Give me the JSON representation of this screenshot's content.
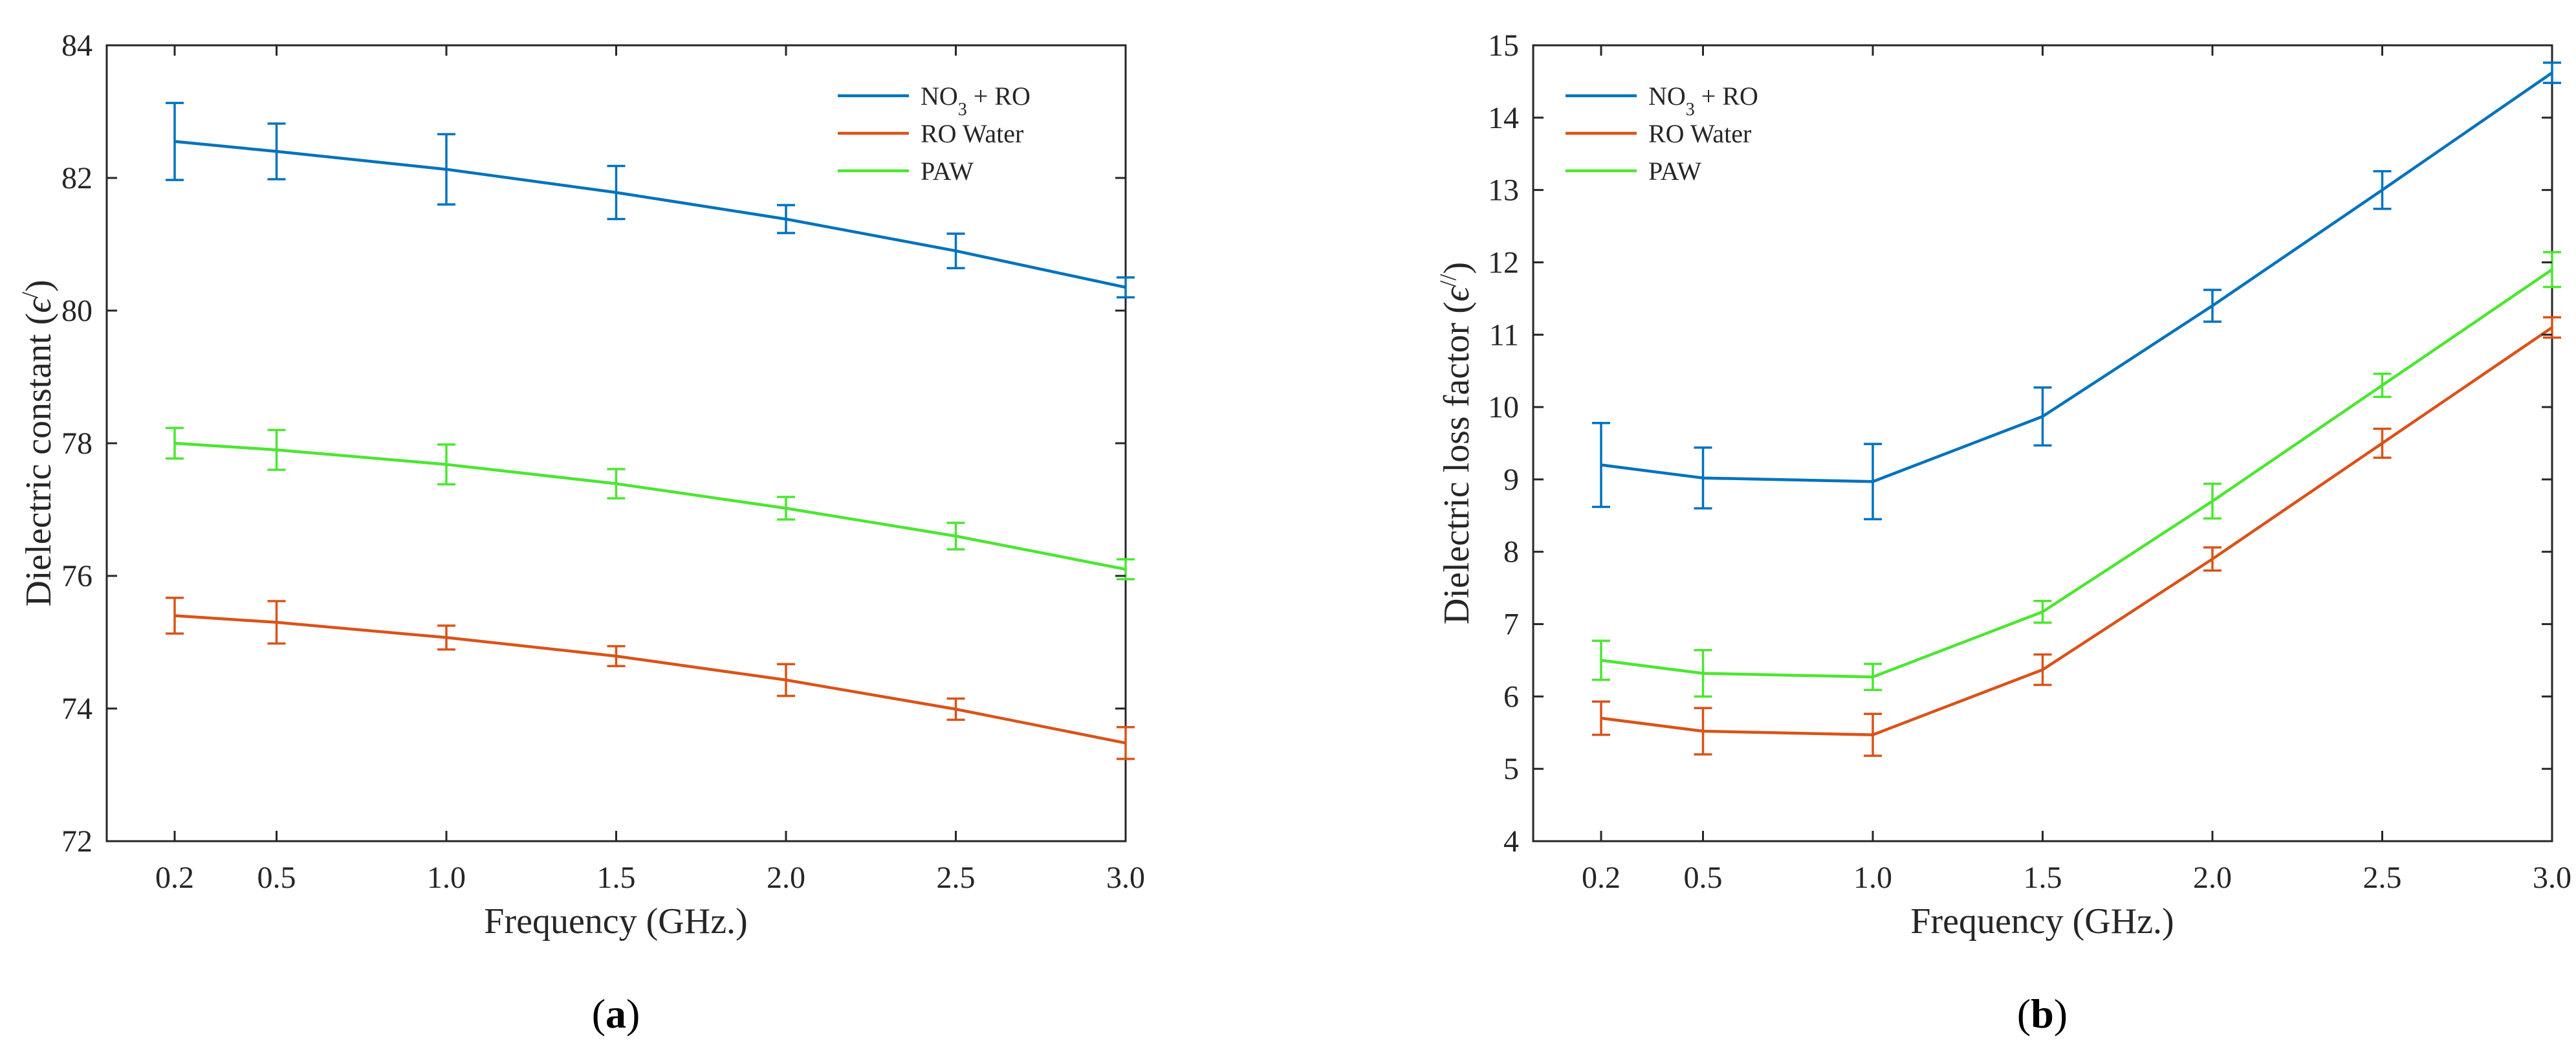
{
  "chart_data": [
    {
      "type": "line",
      "caption": {
        "open": "(",
        "letter": "a",
        "close": ")"
      },
      "xlabel": "Frequency (GHz.)",
      "ylabel": {
        "main": "Dielectric constant (",
        "symbol": "ϵ",
        "sup": "/",
        "close": ")"
      },
      "x": [
        0.2,
        0.5,
        1.0,
        1.5,
        2.0,
        2.5,
        3.0
      ],
      "x_ticklabels": [
        "0.2",
        "0.5",
        "1.0",
        "1.5",
        "2.0",
        "2.5",
        "3.0"
      ],
      "xlim": [
        0,
        3.0
      ],
      "ylim": [
        72,
        84
      ],
      "y_ticks": [
        72,
        74,
        76,
        78,
        80,
        82,
        84
      ],
      "legend_position": "top-right",
      "series": [
        {
          "name": "NO3 + RO",
          "label_main": "NO",
          "label_sub": "3",
          "label_rest": " + RO",
          "color": "#0072BD",
          "values": [
            82.55,
            82.4,
            82.13,
            81.78,
            81.38,
            80.9,
            80.35
          ],
          "errors": [
            0.58,
            0.42,
            0.53,
            0.4,
            0.21,
            0.26,
            0.15
          ]
        },
        {
          "name": "RO Water",
          "label_main": "RO Water",
          "label_sub": "",
          "label_rest": "",
          "color": "#D95319",
          "values": [
            75.4,
            75.3,
            75.07,
            74.79,
            74.43,
            73.99,
            73.48
          ],
          "errors": [
            0.27,
            0.32,
            0.18,
            0.15,
            0.24,
            0.16,
            0.24
          ]
        },
        {
          "name": "PAW",
          "label_main": "PAW",
          "label_sub": "",
          "label_rest": "",
          "color": "#4CE632",
          "values": [
            78.0,
            77.9,
            77.68,
            77.39,
            77.02,
            76.6,
            76.1
          ],
          "errors": [
            0.23,
            0.3,
            0.3,
            0.22,
            0.17,
            0.2,
            0.15
          ]
        }
      ]
    },
    {
      "type": "line",
      "caption": {
        "open": "(",
        "letter": "b",
        "close": ")"
      },
      "xlabel": "Frequency (GHz.)",
      "ylabel": {
        "main": "Dielectric loss factor (",
        "symbol": "ϵ",
        "sup": "//",
        "close": ")"
      },
      "x": [
        0.2,
        0.5,
        1.0,
        1.5,
        2.0,
        2.5,
        3.0
      ],
      "x_ticklabels": [
        "0.2",
        "0.5",
        "1.0",
        "1.5",
        "2.0",
        "2.5",
        "3.0"
      ],
      "xlim": [
        0,
        3.0
      ],
      "ylim": [
        4,
        15
      ],
      "y_ticks": [
        4,
        5,
        6,
        7,
        8,
        9,
        10,
        11,
        12,
        13,
        14,
        15
      ],
      "legend_position": "top-left",
      "series": [
        {
          "name": "NO3 + RO",
          "label_main": "NO",
          "label_sub": "3",
          "label_rest": " + RO",
          "color": "#0072BD",
          "values": [
            9.2,
            9.02,
            8.97,
            9.87,
            11.4,
            13.0,
            14.62
          ],
          "errors": [
            0.58,
            0.42,
            0.52,
            0.4,
            0.22,
            0.26,
            0.14
          ]
        },
        {
          "name": "RO Water",
          "label_main": "RO Water",
          "label_sub": "",
          "label_rest": "",
          "color": "#D95319",
          "values": [
            5.7,
            5.52,
            5.47,
            6.37,
            7.9,
            9.5,
            11.1
          ],
          "errors": [
            0.23,
            0.32,
            0.29,
            0.21,
            0.16,
            0.2,
            0.14
          ]
        },
        {
          "name": "PAW",
          "label_main": "PAW",
          "label_sub": "",
          "label_rest": "",
          "color": "#4CE632",
          "values": [
            6.5,
            6.32,
            6.27,
            7.17,
            8.7,
            10.3,
            11.9
          ],
          "errors": [
            0.27,
            0.32,
            0.18,
            0.15,
            0.24,
            0.16,
            0.24
          ]
        }
      ]
    }
  ]
}
